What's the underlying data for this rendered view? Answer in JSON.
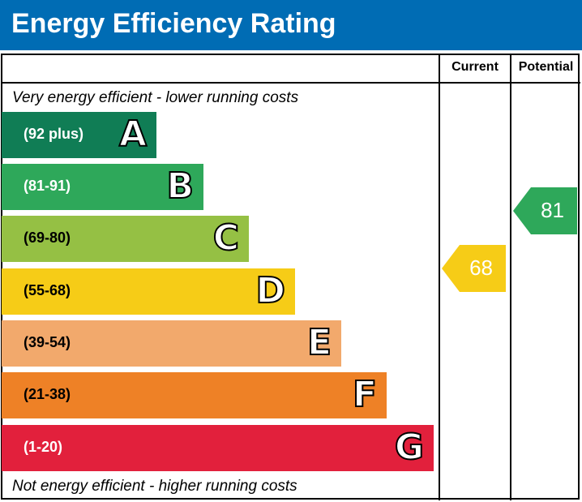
{
  "title": "Energy Efficiency Rating",
  "columns": {
    "current": "Current",
    "potential": "Potential"
  },
  "top_note": "Very energy efficient - lower running costs",
  "bottom_note": "Not energy efficient - higher running costs",
  "chart_data": {
    "type": "bar",
    "categories": [
      "A",
      "B",
      "C",
      "D",
      "E",
      "F",
      "G"
    ],
    "ranges": [
      "(92 plus)",
      "(81-91)",
      "(69-80)",
      "(55-68)",
      "(39-54)",
      "(21-38)",
      "(1-20)"
    ],
    "colors": [
      "#107d55",
      "#2ea85a",
      "#95c044",
      "#f6cc17",
      "#f2a96c",
      "#ee8126",
      "#e2203c"
    ],
    "current": {
      "value": "68",
      "band": "D",
      "color": "#f6cc17"
    },
    "potential": {
      "value": "81",
      "band": "B",
      "color": "#2ea85a"
    }
  }
}
